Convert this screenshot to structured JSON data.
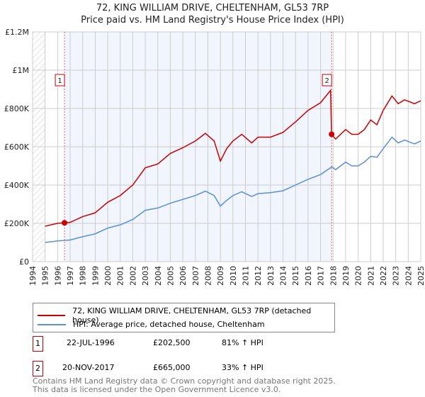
{
  "chart_data": {
    "type": "line",
    "title": "72, KING WILLIAM DRIVE, CHELTENHAM, GL53 7RP",
    "subtitle": "Price paid vs. HM Land Registry's House Price Index (HPI)",
    "xlim": [
      1994,
      2025
    ],
    "ylim": [
      0,
      1200000
    ],
    "yticks": [
      {
        "v": 0,
        "label": "£0"
      },
      {
        "v": 200000,
        "label": "£200K"
      },
      {
        "v": 400000,
        "label": "£400K"
      },
      {
        "v": 600000,
        "label": "£600K"
      },
      {
        "v": 800000,
        "label": "£800K"
      },
      {
        "v": 1000000,
        "label": "£1M"
      },
      {
        "v": 1200000,
        "label": "£1.2M"
      }
    ],
    "xticks": [
      "1994",
      "1995",
      "1996",
      "1997",
      "1998",
      "1999",
      "2000",
      "2001",
      "2002",
      "2003",
      "2004",
      "2005",
      "2006",
      "2007",
      "2008",
      "2009",
      "2010",
      "2011",
      "2012",
      "2013",
      "2014",
      "2015",
      "2016",
      "2017",
      "2018",
      "2019",
      "2020",
      "2021",
      "2022",
      "2023",
      "2024",
      "2025"
    ],
    "series": [
      {
        "name": "72, KING WILLIAM DRIVE, CHELTENHAM, GL53 7RP (detached house)",
        "color": "#cc0000",
        "x": [
          1995,
          1996,
          1996.55,
          1997,
          1998,
          1999,
          2000,
          2001,
          2002,
          2003,
          2004,
          2005,
          2006,
          2007,
          2007.8,
          2008.5,
          2009,
          2009.5,
          2010,
          2010.7,
          2011.5,
          2012,
          2013,
          2014,
          2015,
          2016,
          2017,
          2017.8,
          2017.88,
          2018.2,
          2019,
          2019.5,
          2020,
          2020.5,
          2021,
          2021.5,
          2022,
          2022.7,
          2023.2,
          2023.7,
          2024.5,
          2025
        ],
        "y": [
          185000,
          200000,
          202500,
          205000,
          235000,
          255000,
          310000,
          345000,
          400000,
          490000,
          510000,
          565000,
          595000,
          630000,
          670000,
          630000,
          525000,
          590000,
          630000,
          665000,
          620000,
          650000,
          650000,
          675000,
          730000,
          790000,
          830000,
          895000,
          665000,
          640000,
          690000,
          665000,
          665000,
          690000,
          740000,
          715000,
          790000,
          865000,
          825000,
          845000,
          825000,
          840000
        ]
      },
      {
        "name": "HPI: Average price, detached house, Cheltenham",
        "color": "#5b8fd6",
        "x": [
          1995,
          1996,
          1997,
          1998,
          1999,
          2000,
          2001,
          2002,
          2003,
          2004,
          2005,
          2006,
          2007,
          2007.8,
          2008.5,
          2009,
          2009.5,
          2010,
          2010.7,
          2011.5,
          2012,
          2013,
          2014,
          2015,
          2016,
          2017,
          2017.9,
          2018.2,
          2019,
          2019.5,
          2020,
          2020.5,
          2021,
          2021.5,
          2022,
          2022.7,
          2023.2,
          2023.7,
          2024.5,
          2025
        ],
        "y": [
          100000,
          108000,
          113000,
          130000,
          145000,
          175000,
          192000,
          220000,
          268000,
          280000,
          305000,
          325000,
          345000,
          368000,
          345000,
          290000,
          320000,
          345000,
          365000,
          340000,
          355000,
          360000,
          370000,
          400000,
          430000,
          455000,
          495000,
          480000,
          520000,
          500000,
          500000,
          520000,
          550000,
          545000,
          590000,
          650000,
          620000,
          635000,
          615000,
          630000
        ]
      }
    ],
    "sales": [
      {
        "id": "1",
        "x": 1996.55,
        "y": 202500,
        "date": "22-JUL-1996",
        "price": "£202,500",
        "hpi": "81% ↑ HPI"
      },
      {
        "id": "2",
        "x": 2017.88,
        "y": 665000,
        "date": "20-NOV-2017",
        "price": "£665,000",
        "hpi": "33% ↑ HPI"
      }
    ]
  },
  "footer": [
    "Contains HM Land Registry data © Crown copyright and database right 2025.",
    "This data is licensed under the Open Government Licence v3.0."
  ]
}
